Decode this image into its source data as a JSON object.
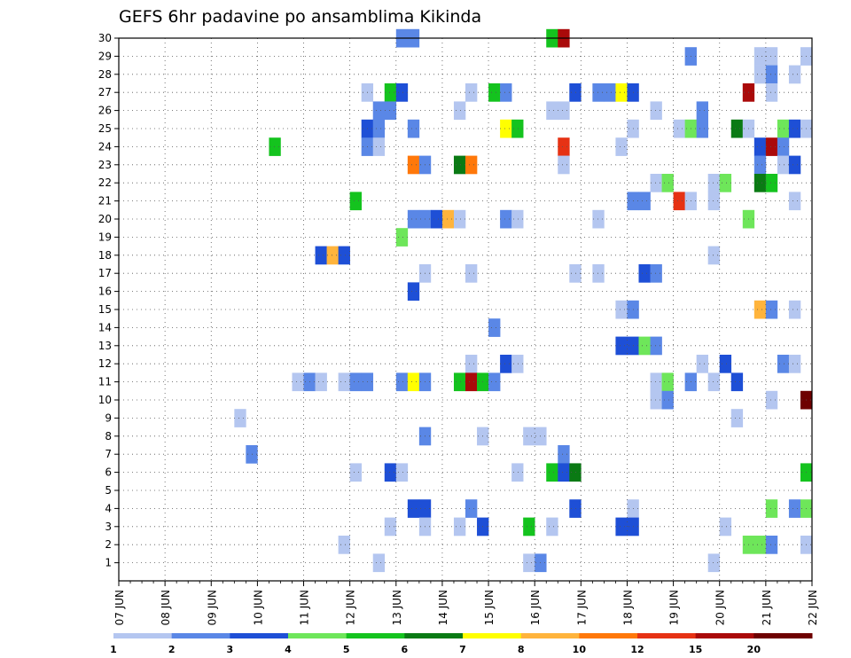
{
  "chart_data": {
    "type": "heatmap",
    "title": "GEFS 6hr padavine po ansamblima Kikinda",
    "xlabel": "",
    "ylabel": "",
    "x_tick_labels": [
      "07 JUN",
      "08 JUN",
      "09 JUN",
      "10 JUN",
      "11 JUN",
      "12 JUN",
      "13 JUN",
      "14 JUN",
      "15 JUN",
      "16 JUN",
      "17 JUN",
      "18 JUN",
      "19 JUN",
      "20 JUN",
      "21 JUN",
      "22 JUN"
    ],
    "x_range": [
      0,
      60
    ],
    "y_tick_labels": [
      "1",
      "2",
      "3",
      "4",
      "5",
      "6",
      "7",
      "8",
      "9",
      "10",
      "11",
      "12",
      "13",
      "14",
      "15",
      "16",
      "17",
      "18",
      "19",
      "20",
      "21",
      "22",
      "23",
      "24",
      "25",
      "26",
      "27",
      "28",
      "29",
      "30"
    ],
    "y_range": [
      0,
      30
    ],
    "grid": true,
    "colorbar": {
      "position": "bottom",
      "labels": [
        "1",
        "2",
        "3",
        "4",
        "5",
        "6",
        "7",
        "8",
        "10",
        "12",
        "15",
        "20"
      ],
      "colors": [
        "#b4c6f0",
        "#5a87e6",
        "#1e4fd6",
        "#6ee65a",
        "#14c31e",
        "#0a7a14",
        "#ffff00",
        "#ffb43c",
        "#ff780a",
        "#e63214",
        "#aa0a0a",
        "#6e0000"
      ]
    },
    "cells_note": "x = 6-hour step index from 07 JUN 00UTC, y = ensemble member, c = color class index",
    "cells": [
      {
        "x": 24.5,
        "y": 30,
        "c": 1
      },
      {
        "x": 25.5,
        "y": 30,
        "c": 1
      },
      {
        "x": 37.5,
        "y": 30,
        "c": 4
      },
      {
        "x": 38.5,
        "y": 30,
        "c": 10
      },
      {
        "x": 49.5,
        "y": 29,
        "c": 1
      },
      {
        "x": 55.5,
        "y": 29,
        "c": 0
      },
      {
        "x": 56.5,
        "y": 29,
        "c": 0
      },
      {
        "x": 59.5,
        "y": 29,
        "c": 0
      },
      {
        "x": 55.5,
        "y": 28,
        "c": 0
      },
      {
        "x": 56.5,
        "y": 28,
        "c": 1
      },
      {
        "x": 58.5,
        "y": 28,
        "c": 0
      },
      {
        "x": 21.5,
        "y": 27,
        "c": 0
      },
      {
        "x": 23.5,
        "y": 27,
        "c": 4
      },
      {
        "x": 24.5,
        "y": 27,
        "c": 2
      },
      {
        "x": 30.5,
        "y": 27,
        "c": 0
      },
      {
        "x": 32.5,
        "y": 27,
        "c": 4
      },
      {
        "x": 33.5,
        "y": 27,
        "c": 1
      },
      {
        "x": 39.5,
        "y": 27,
        "c": 2
      },
      {
        "x": 41.5,
        "y": 27,
        "c": 1
      },
      {
        "x": 42.5,
        "y": 27,
        "c": 1
      },
      {
        "x": 43.5,
        "y": 27,
        "c": 6
      },
      {
        "x": 44.5,
        "y": 27,
        "c": 2
      },
      {
        "x": 54.5,
        "y": 27,
        "c": 10
      },
      {
        "x": 56.5,
        "y": 27,
        "c": 0
      },
      {
        "x": 22.5,
        "y": 26,
        "c": 1
      },
      {
        "x": 23.5,
        "y": 26,
        "c": 1
      },
      {
        "x": 29.5,
        "y": 26,
        "c": 0
      },
      {
        "x": 37.5,
        "y": 26,
        "c": 0
      },
      {
        "x": 38.5,
        "y": 26,
        "c": 0
      },
      {
        "x": 46.5,
        "y": 26,
        "c": 0
      },
      {
        "x": 50.5,
        "y": 26,
        "c": 1
      },
      {
        "x": 21.5,
        "y": 25,
        "c": 2
      },
      {
        "x": 22.5,
        "y": 25,
        "c": 1
      },
      {
        "x": 25.5,
        "y": 25,
        "c": 1
      },
      {
        "x": 33.5,
        "y": 25,
        "c": 6
      },
      {
        "x": 34.5,
        "y": 25,
        "c": 4
      },
      {
        "x": 44.5,
        "y": 25,
        "c": 0
      },
      {
        "x": 48.5,
        "y": 25,
        "c": 0
      },
      {
        "x": 49.5,
        "y": 25,
        "c": 3
      },
      {
        "x": 50.5,
        "y": 25,
        "c": 1
      },
      {
        "x": 53.5,
        "y": 25,
        "c": 5
      },
      {
        "x": 54.5,
        "y": 25,
        "c": 0
      },
      {
        "x": 57.5,
        "y": 25,
        "c": 3
      },
      {
        "x": 58.5,
        "y": 25,
        "c": 2
      },
      {
        "x": 59.5,
        "y": 25,
        "c": 0
      },
      {
        "x": 13.5,
        "y": 24,
        "c": 4
      },
      {
        "x": 21.5,
        "y": 24,
        "c": 1
      },
      {
        "x": 22.5,
        "y": 24,
        "c": 0
      },
      {
        "x": 38.5,
        "y": 24,
        "c": 9
      },
      {
        "x": 43.5,
        "y": 24,
        "c": 0
      },
      {
        "x": 55.5,
        "y": 24,
        "c": 2
      },
      {
        "x": 56.5,
        "y": 24,
        "c": 10
      },
      {
        "x": 57.5,
        "y": 24,
        "c": 1
      },
      {
        "x": 25.5,
        "y": 23,
        "c": 8
      },
      {
        "x": 26.5,
        "y": 23,
        "c": 1
      },
      {
        "x": 29.5,
        "y": 23,
        "c": 5
      },
      {
        "x": 30.5,
        "y": 23,
        "c": 8
      },
      {
        "x": 38.5,
        "y": 23,
        "c": 0
      },
      {
        "x": 55.5,
        "y": 23,
        "c": 1
      },
      {
        "x": 57.5,
        "y": 23,
        "c": 0
      },
      {
        "x": 58.5,
        "y": 23,
        "c": 2
      },
      {
        "x": 46.5,
        "y": 22,
        "c": 0
      },
      {
        "x": 47.5,
        "y": 22,
        "c": 3
      },
      {
        "x": 51.5,
        "y": 22,
        "c": 0
      },
      {
        "x": 52.5,
        "y": 22,
        "c": 3
      },
      {
        "x": 55.5,
        "y": 22,
        "c": 5
      },
      {
        "x": 56.5,
        "y": 22,
        "c": 4
      },
      {
        "x": 20.5,
        "y": 21,
        "c": 4
      },
      {
        "x": 44.5,
        "y": 21,
        "c": 1
      },
      {
        "x": 45.5,
        "y": 21,
        "c": 1
      },
      {
        "x": 48.5,
        "y": 21,
        "c": 9
      },
      {
        "x": 49.5,
        "y": 21,
        "c": 0
      },
      {
        "x": 51.5,
        "y": 21,
        "c": 0
      },
      {
        "x": 58.5,
        "y": 21,
        "c": 0
      },
      {
        "x": 25.5,
        "y": 20,
        "c": 1
      },
      {
        "x": 26.5,
        "y": 20,
        "c": 1
      },
      {
        "x": 27.5,
        "y": 20,
        "c": 2
      },
      {
        "x": 28.5,
        "y": 20,
        "c": 7
      },
      {
        "x": 29.5,
        "y": 20,
        "c": 0
      },
      {
        "x": 33.5,
        "y": 20,
        "c": 1
      },
      {
        "x": 34.5,
        "y": 20,
        "c": 0
      },
      {
        "x": 41.5,
        "y": 20,
        "c": 0
      },
      {
        "x": 54.5,
        "y": 20,
        "c": 3
      },
      {
        "x": 24.5,
        "y": 19,
        "c": 3
      },
      {
        "x": 17.5,
        "y": 18,
        "c": 2
      },
      {
        "x": 18.5,
        "y": 18,
        "c": 7
      },
      {
        "x": 19.5,
        "y": 18,
        "c": 2
      },
      {
        "x": 51.5,
        "y": 18,
        "c": 0
      },
      {
        "x": 26.5,
        "y": 17,
        "c": 0
      },
      {
        "x": 30.5,
        "y": 17,
        "c": 0
      },
      {
        "x": 39.5,
        "y": 17,
        "c": 0
      },
      {
        "x": 41.5,
        "y": 17,
        "c": 0
      },
      {
        "x": 45.5,
        "y": 17,
        "c": 2
      },
      {
        "x": 46.5,
        "y": 17,
        "c": 1
      },
      {
        "x": 25.5,
        "y": 16,
        "c": 2
      },
      {
        "x": 43.5,
        "y": 15,
        "c": 0
      },
      {
        "x": 44.5,
        "y": 15,
        "c": 1
      },
      {
        "x": 55.5,
        "y": 15,
        "c": 7
      },
      {
        "x": 56.5,
        "y": 15,
        "c": 1
      },
      {
        "x": 58.5,
        "y": 15,
        "c": 0
      },
      {
        "x": 32.5,
        "y": 14,
        "c": 1
      },
      {
        "x": 43.5,
        "y": 13,
        "c": 2
      },
      {
        "x": 44.5,
        "y": 13,
        "c": 2
      },
      {
        "x": 45.5,
        "y": 13,
        "c": 3
      },
      {
        "x": 46.5,
        "y": 13,
        "c": 1
      },
      {
        "x": 30.5,
        "y": 12,
        "c": 0
      },
      {
        "x": 33.5,
        "y": 12,
        "c": 2
      },
      {
        "x": 34.5,
        "y": 12,
        "c": 0
      },
      {
        "x": 50.5,
        "y": 12,
        "c": 0
      },
      {
        "x": 52.5,
        "y": 12,
        "c": 2
      },
      {
        "x": 57.5,
        "y": 12,
        "c": 1
      },
      {
        "x": 58.5,
        "y": 12,
        "c": 0
      },
      {
        "x": 15.5,
        "y": 11,
        "c": 0
      },
      {
        "x": 16.5,
        "y": 11,
        "c": 1
      },
      {
        "x": 17.5,
        "y": 11,
        "c": 0
      },
      {
        "x": 19.5,
        "y": 11,
        "c": 0
      },
      {
        "x": 20.5,
        "y": 11,
        "c": 1
      },
      {
        "x": 21.5,
        "y": 11,
        "c": 1
      },
      {
        "x": 24.5,
        "y": 11,
        "c": 1
      },
      {
        "x": 25.5,
        "y": 11,
        "c": 6
      },
      {
        "x": 26.5,
        "y": 11,
        "c": 1
      },
      {
        "x": 29.5,
        "y": 11,
        "c": 4
      },
      {
        "x": 30.5,
        "y": 11,
        "c": 10
      },
      {
        "x": 31.5,
        "y": 11,
        "c": 4
      },
      {
        "x": 32.5,
        "y": 11,
        "c": 1
      },
      {
        "x": 46.5,
        "y": 11,
        "c": 0
      },
      {
        "x": 47.5,
        "y": 11,
        "c": 3
      },
      {
        "x": 49.5,
        "y": 11,
        "c": 1
      },
      {
        "x": 51.5,
        "y": 11,
        "c": 0
      },
      {
        "x": 53.5,
        "y": 11,
        "c": 2
      },
      {
        "x": 46.5,
        "y": 10,
        "c": 0
      },
      {
        "x": 47.5,
        "y": 10,
        "c": 1
      },
      {
        "x": 56.5,
        "y": 10,
        "c": 0
      },
      {
        "x": 59.5,
        "y": 10,
        "c": 11
      },
      {
        "x": 10.5,
        "y": 9,
        "c": 0
      },
      {
        "x": 53.5,
        "y": 9,
        "c": 0
      },
      {
        "x": 26.5,
        "y": 8,
        "c": 1
      },
      {
        "x": 31.5,
        "y": 8,
        "c": 0
      },
      {
        "x": 35.5,
        "y": 8,
        "c": 0
      },
      {
        "x": 36.5,
        "y": 8,
        "c": 0
      },
      {
        "x": 11.5,
        "y": 7,
        "c": 1
      },
      {
        "x": 38.5,
        "y": 7,
        "c": 1
      },
      {
        "x": 20.5,
        "y": 6,
        "c": 0
      },
      {
        "x": 23.5,
        "y": 6,
        "c": 2
      },
      {
        "x": 24.5,
        "y": 6,
        "c": 0
      },
      {
        "x": 34.5,
        "y": 6,
        "c": 0
      },
      {
        "x": 37.5,
        "y": 6,
        "c": 4
      },
      {
        "x": 38.5,
        "y": 6,
        "c": 2
      },
      {
        "x": 39.5,
        "y": 6,
        "c": 5
      },
      {
        "x": 59.5,
        "y": 6,
        "c": 4
      },
      {
        "x": 25.5,
        "y": 4,
        "c": 2
      },
      {
        "x": 26.5,
        "y": 4,
        "c": 2
      },
      {
        "x": 30.5,
        "y": 4,
        "c": 1
      },
      {
        "x": 39.5,
        "y": 4,
        "c": 2
      },
      {
        "x": 44.5,
        "y": 4,
        "c": 0
      },
      {
        "x": 56.5,
        "y": 4,
        "c": 3
      },
      {
        "x": 58.5,
        "y": 4,
        "c": 1
      },
      {
        "x": 59.5,
        "y": 4,
        "c": 3
      },
      {
        "x": 23.5,
        "y": 3,
        "c": 0
      },
      {
        "x": 26.5,
        "y": 3,
        "c": 0
      },
      {
        "x": 29.5,
        "y": 3,
        "c": 0
      },
      {
        "x": 31.5,
        "y": 3,
        "c": 2
      },
      {
        "x": 35.5,
        "y": 3,
        "c": 4
      },
      {
        "x": 37.5,
        "y": 3,
        "c": 0
      },
      {
        "x": 43.5,
        "y": 3,
        "c": 2
      },
      {
        "x": 44.5,
        "y": 3,
        "c": 2
      },
      {
        "x": 52.5,
        "y": 3,
        "c": 0
      },
      {
        "x": 19.5,
        "y": 2,
        "c": 0
      },
      {
        "x": 54.5,
        "y": 2,
        "c": 3
      },
      {
        "x": 55.5,
        "y": 2,
        "c": 3
      },
      {
        "x": 56.5,
        "y": 2,
        "c": 1
      },
      {
        "x": 59.5,
        "y": 2,
        "c": 0
      },
      {
        "x": 22.5,
        "y": 1,
        "c": 0
      },
      {
        "x": 35.5,
        "y": 1,
        "c": 0
      },
      {
        "x": 36.5,
        "y": 1,
        "c": 1
      },
      {
        "x": 51.5,
        "y": 1,
        "c": 0
      }
    ]
  }
}
